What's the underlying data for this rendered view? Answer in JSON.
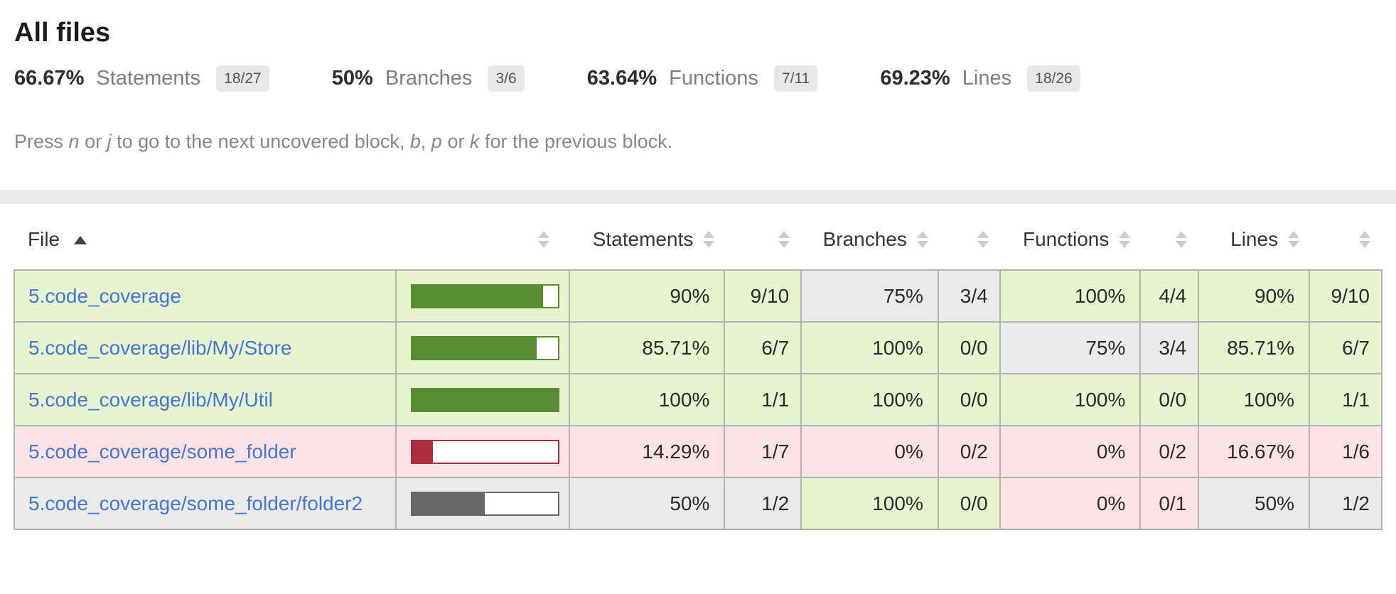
{
  "page": {
    "title": "All files"
  },
  "summary": {
    "stats": [
      {
        "pct": "66.67%",
        "label": "Statements",
        "fraction": "18/27"
      },
      {
        "pct": "50%",
        "label": "Branches",
        "fraction": "3/6"
      },
      {
        "pct": "63.64%",
        "label": "Functions",
        "fraction": "7/11"
      },
      {
        "pct": "69.23%",
        "label": "Lines",
        "fraction": "18/26"
      }
    ],
    "status_level": "medium"
  },
  "hint": {
    "prefix": "Press ",
    "key_n": "n",
    "sep1": " or ",
    "key_j": "j",
    "mid": " to go to the next uncovered block, ",
    "key_b": "b",
    "sep2": ", ",
    "key_p": "p",
    "sep3": " or ",
    "key_k": "k",
    "suffix": " for the previous block."
  },
  "table": {
    "columns": {
      "file": "File",
      "statements": "Statements",
      "branches": "Branches",
      "functions": "Functions",
      "lines": "Lines"
    },
    "sort": {
      "column": "File",
      "direction": "asc"
    },
    "rows": [
      {
        "file": "5.code_coverage",
        "row_class": "high",
        "chart": {
          "class": "high",
          "fill_pct": 90
        },
        "metrics": [
          {
            "name": "statements",
            "class": "high",
            "pct": "90%",
            "fraction": "9/10"
          },
          {
            "name": "branches",
            "class": "medium",
            "pct": "75%",
            "fraction": "3/4"
          },
          {
            "name": "functions",
            "class": "high",
            "pct": "100%",
            "fraction": "4/4"
          },
          {
            "name": "lines",
            "class": "high",
            "pct": "90%",
            "fraction": "9/10"
          }
        ]
      },
      {
        "file": "5.code_coverage/lib/My/Store",
        "row_class": "high",
        "chart": {
          "class": "high",
          "fill_pct": 85.71
        },
        "metrics": [
          {
            "name": "statements",
            "class": "high",
            "pct": "85.71%",
            "fraction": "6/7"
          },
          {
            "name": "branches",
            "class": "high",
            "pct": "100%",
            "fraction": "0/0"
          },
          {
            "name": "functions",
            "class": "medium",
            "pct": "75%",
            "fraction": "3/4"
          },
          {
            "name": "lines",
            "class": "high",
            "pct": "85.71%",
            "fraction": "6/7"
          }
        ]
      },
      {
        "file": "5.code_coverage/lib/My/Util",
        "row_class": "high",
        "chart": {
          "class": "high",
          "fill_pct": 100
        },
        "metrics": [
          {
            "name": "statements",
            "class": "high",
            "pct": "100%",
            "fraction": "1/1"
          },
          {
            "name": "branches",
            "class": "high",
            "pct": "100%",
            "fraction": "0/0"
          },
          {
            "name": "functions",
            "class": "high",
            "pct": "100%",
            "fraction": "0/0"
          },
          {
            "name": "lines",
            "class": "high",
            "pct": "100%",
            "fraction": "1/1"
          }
        ]
      },
      {
        "file": "5.code_coverage/some_folder",
        "row_class": "low",
        "chart": {
          "class": "low",
          "fill_pct": 14.29
        },
        "metrics": [
          {
            "name": "statements",
            "class": "low",
            "pct": "14.29%",
            "fraction": "1/7"
          },
          {
            "name": "branches",
            "class": "low",
            "pct": "0%",
            "fraction": "0/2"
          },
          {
            "name": "functions",
            "class": "low",
            "pct": "0%",
            "fraction": "0/2"
          },
          {
            "name": "lines",
            "class": "low",
            "pct": "16.67%",
            "fraction": "1/6"
          }
        ]
      },
      {
        "file": "5.code_coverage/some_folder/folder2",
        "row_class": "medium",
        "chart": {
          "class": "medium",
          "fill_pct": 50
        },
        "metrics": [
          {
            "name": "statements",
            "class": "medium",
            "pct": "50%",
            "fraction": "1/2"
          },
          {
            "name": "branches",
            "class": "high",
            "pct": "100%",
            "fraction": "0/0"
          },
          {
            "name": "functions",
            "class": "low",
            "pct": "0%",
            "fraction": "0/1"
          },
          {
            "name": "lines",
            "class": "medium",
            "pct": "50%",
            "fraction": "1/2"
          }
        ]
      }
    ]
  },
  "colors": {
    "high_bg": "#e6f5d0",
    "medium_bg": "#eaeaea",
    "low_bg": "#fce1e5",
    "bar_green": "#588c33",
    "bar_red": "#ad2d3e",
    "bar_grey": "#666666",
    "table_border": "#b3b3b3",
    "link_blue": "#4575d5",
    "quiet_text": "#7f7f7f",
    "badge_bg": "#e8e8e8",
    "status_line_bg": "#eaeaea"
  }
}
